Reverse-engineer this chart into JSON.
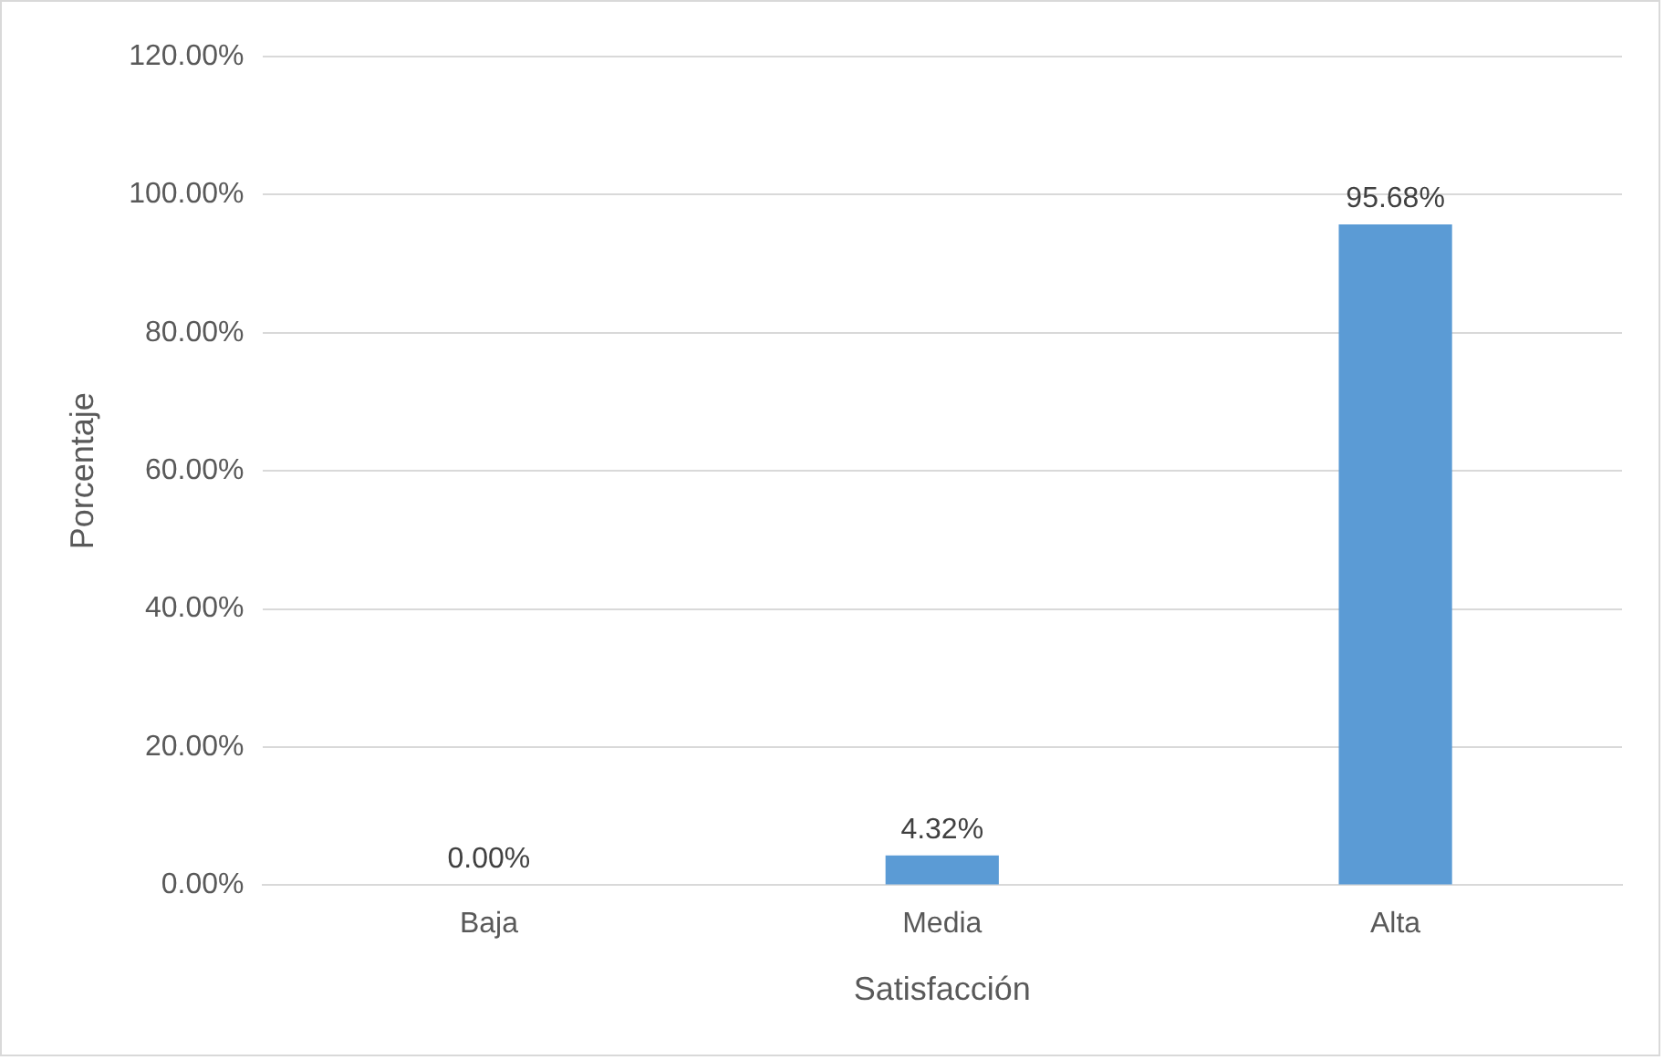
{
  "chart_data": {
    "type": "bar",
    "xlabel": "Satisfacción",
    "ylabel": "Porcentaje",
    "categories": [
      "Baja",
      "Media",
      "Alta"
    ],
    "values": [
      0,
      4.32,
      95.68
    ],
    "color": "#5b9bd5",
    "value_labels": [
      "0.00%",
      "4.32%",
      "95.68%"
    ],
    "ylim": [
      0,
      120
    ],
    "yticks": [
      {
        "value": 0,
        "label": "0.00%"
      },
      {
        "value": 20,
        "label": "20.00%"
      },
      {
        "value": 40,
        "label": "40.00%"
      },
      {
        "value": 60,
        "label": "60.00%"
      },
      {
        "value": 80,
        "label": "80.00%"
      },
      {
        "value": 100,
        "label": "100.00%"
      },
      {
        "value": 120,
        "label": "120.00%"
      }
    ],
    "grid": "y"
  }
}
